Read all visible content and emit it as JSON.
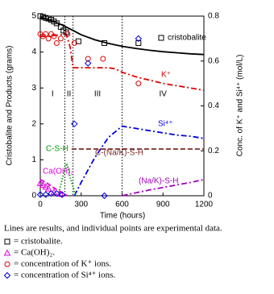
{
  "chart_data": {
    "type": "line",
    "xlabel": "Time (hours)",
    "ylabel": "Cristobalite and Products (grams)",
    "y2label": "Conc. of K⁺ and Si⁴⁺ (mol/L)",
    "xlim": [
      0,
      1200
    ],
    "xticks": [
      0,
      300,
      600,
      900,
      1200
    ],
    "ylim": [
      0,
      5
    ],
    "yticks": [
      0,
      1,
      2,
      3,
      4,
      5
    ],
    "y2lim": [
      0,
      0.8
    ],
    "y2ticks": [
      0,
      0.2,
      0.4,
      0.6,
      0.8
    ],
    "stage_boundaries": [
      180,
      240,
      600
    ],
    "stages": [
      "I",
      "II",
      "III",
      "IV"
    ],
    "series": [
      {
        "name": "cristobalite",
        "color": "#000000",
        "style": "solid",
        "axis": "y",
        "x": [
          0,
          50,
          100,
          150,
          200,
          250,
          300,
          400,
          500,
          600,
          700,
          800,
          900,
          1000,
          1100,
          1200
        ],
        "values": [
          4.97,
          4.92,
          4.85,
          4.77,
          4.68,
          4.58,
          4.48,
          4.34,
          4.24,
          4.16,
          4.1,
          4.05,
          4.01,
          3.98,
          3.95,
          3.93
        ]
      },
      {
        "name": "K⁺",
        "color": "#e00000",
        "style": "dashdot",
        "axis": "y2",
        "x": [
          0,
          60,
          120,
          190,
          220,
          240,
          300,
          400,
          500,
          550,
          600,
          700,
          800,
          900,
          1000,
          1100,
          1200
        ],
        "values": [
          0.71,
          0.71,
          0.715,
          0.72,
          0.66,
          0.57,
          0.57,
          0.57,
          0.57,
          0.565,
          0.55,
          0.53,
          0.515,
          0.5,
          0.49,
          0.48,
          0.47
        ]
      },
      {
        "name": "Si⁴⁺",
        "color": "#0000e0",
        "style": "dashdot",
        "axis": "y2",
        "x": [
          250,
          300,
          400,
          500,
          600,
          700,
          800,
          900,
          1000,
          1100,
          1200
        ],
        "values": [
          0,
          0.06,
          0.17,
          0.26,
          0.31,
          0.3,
          0.29,
          0.28,
          0.27,
          0.265,
          0.255
        ]
      },
      {
        "name": "C-(Na/K)-S-H",
        "color": "#7a2a2a",
        "style": "dashed",
        "axis": "y",
        "x": [
          230,
          1200
        ],
        "values": [
          1.3,
          1.3
        ]
      },
      {
        "name": "C-S-H",
        "color": "#00a000",
        "style": "dotted",
        "axis": "y",
        "x": [
          130,
          170,
          195,
          220,
          260
        ],
        "values": [
          0,
          0.6,
          0.9,
          0.5,
          0
        ]
      },
      {
        "name": "Ca(OH)₂",
        "color": "#e000e0",
        "style": "dashed",
        "axis": "y",
        "x": [
          0,
          50,
          100,
          150,
          200
        ],
        "values": [
          0.45,
          0.35,
          0.22,
          0.1,
          0
        ]
      },
      {
        "name": "(Na/K)-S-H",
        "color": "#a000c0",
        "style": "dashdot",
        "axis": "y",
        "x": [
          600,
          700,
          800,
          900,
          1000,
          1100,
          1200
        ],
        "values": [
          0,
          0.08,
          0.16,
          0.23,
          0.3,
          0.37,
          0.45
        ]
      }
    ],
    "points": [
      {
        "marker": "square",
        "color": "#000000",
        "axis": "y",
        "x": [
          0,
          20,
          40,
          60,
          80,
          100,
          120,
          150,
          170,
          190,
          280,
          470,
          720
        ],
        "values": [
          5,
          4.98,
          4.95,
          4.93,
          4.9,
          4.85,
          4.8,
          4.7,
          4.6,
          4.55,
          4.3,
          4.25,
          4.25
        ]
      },
      {
        "marker": "triangle",
        "color": "#e000e0",
        "axis": "y",
        "x": [
          0,
          20,
          40,
          60,
          100,
          150
        ],
        "values": [
          0.35,
          0.3,
          0.25,
          0.2,
          0.1,
          0.05
        ]
      },
      {
        "marker": "circle",
        "color": "#e00000",
        "axis": "y2",
        "x": [
          0,
          20,
          40,
          60,
          80,
          100,
          120,
          150,
          200,
          250,
          350,
          460,
          720
        ],
        "values": [
          0.72,
          0.71,
          0.72,
          0.7,
          0.72,
          0.71,
          0.68,
          0.7,
          0.72,
          0.68,
          0.61,
          0.61,
          0.5
        ]
      },
      {
        "marker": "diamond",
        "color": "#0000e0",
        "axis": "y2",
        "x": [
          0,
          40,
          80,
          120,
          160,
          250,
          350,
          470,
          720
        ],
        "values": [
          0.005,
          0.005,
          0.01,
          0.01,
          0.005,
          0.32,
          0.59,
          0,
          0.7
        ]
      }
    ],
    "caption": "Lines are results, and individual points are experimental  data.",
    "legend": [
      "= cristobalite.",
      "= Ca(OH)₂.",
      "= concentration of K⁺ ions.",
      "= concentration of Si⁴⁺ ions."
    ]
  }
}
